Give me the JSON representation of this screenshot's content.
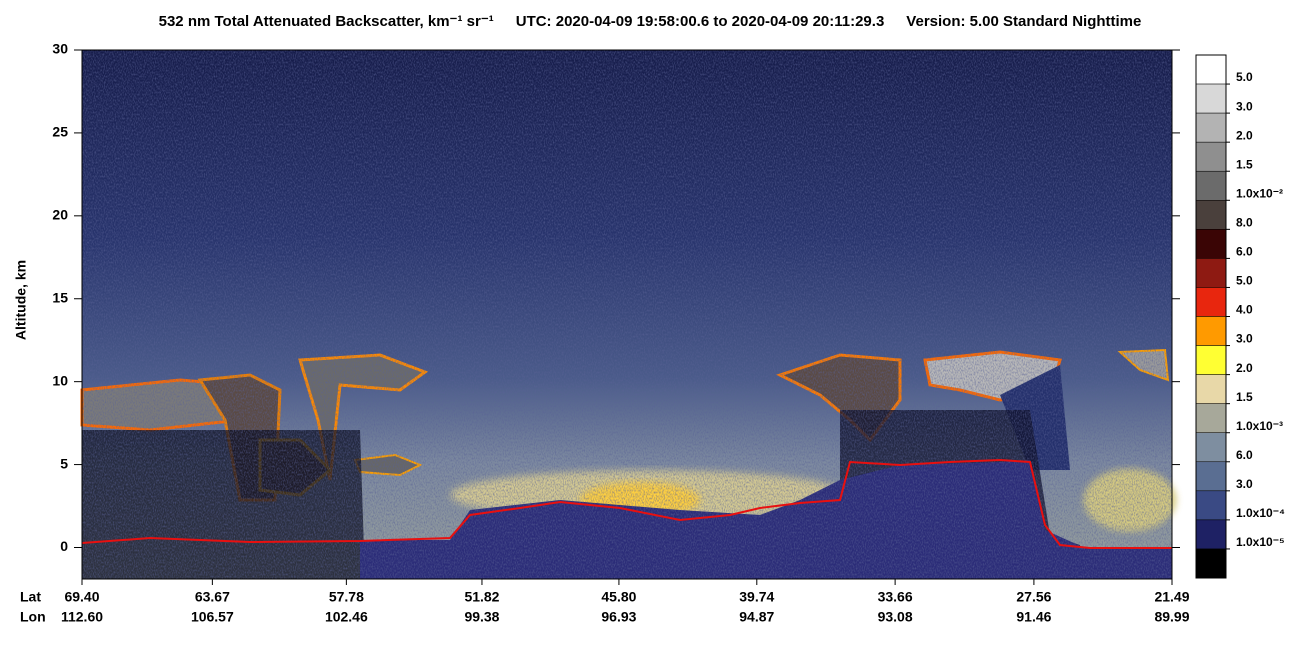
{
  "chart_data": {
    "type": "curtain",
    "title": "532 nm Total Attenuated Backscatter, km⁻¹ sr⁻¹",
    "time_range": "UTC:  2020-04-09 19:58:00.6  to  2020-04-09 20:11:29.3",
    "version": "Version: 5.00  Standard  Nighttime",
    "ylabel": "Altitude, km",
    "ylim": [
      -1.9,
      30
    ],
    "yticks": [
      0,
      5,
      10,
      15,
      20,
      25,
      30
    ],
    "xlim": [
      69.4,
      21.49
    ],
    "x_row_labels": [
      "Lat",
      "Lon"
    ],
    "xticks": [
      {
        "value": 69.4,
        "label": "69.40"
      },
      {
        "value": 63.67,
        "label": "63.67"
      },
      {
        "value": 57.78,
        "label": "57.78"
      },
      {
        "value": 51.82,
        "label": "51.82"
      },
      {
        "value": 45.8,
        "label": "45.80"
      },
      {
        "value": 39.74,
        "label": "39.74"
      },
      {
        "value": 33.66,
        "label": "33.66"
      },
      {
        "value": 27.56,
        "label": "27.56"
      },
      {
        "value": 21.49,
        "label": "21.49"
      }
    ],
    "x2ticks": [
      {
        "value": 112.6,
        "label": "112.60"
      },
      {
        "value": 106.57,
        "label": "106.57"
      },
      {
        "value": 102.46,
        "label": "102.46"
      },
      {
        "value": 99.38,
        "label": "99.38"
      },
      {
        "value": 96.93,
        "label": "96.93"
      },
      {
        "value": 94.87,
        "label": "94.87"
      },
      {
        "value": 93.08,
        "label": "93.08"
      },
      {
        "value": 91.46,
        "label": "91.46"
      },
      {
        "value": 89.99,
        "label": "89.99"
      }
    ],
    "colorbar": {
      "values": [
        0.05,
        0.03,
        0.02,
        0.015,
        0.01,
        0.008,
        0.006,
        0.005,
        0.004,
        0.003,
        0.002,
        0.0015,
        0.001,
        0.0006,
        0.0003,
        0.0001,
        1e-05
      ],
      "value_labels": [
        "5.0",
        "3.0",
        "2.0",
        "1.5",
        "1.0x10⁻²",
        "8.0",
        "6.0",
        "5.0",
        "4.0",
        "3.0",
        "2.0",
        "1.5",
        "1.0x10⁻³",
        "6.0",
        "3.0",
        "1.0x10⁻⁴",
        "1.0x10⁻⁵"
      ],
      "colors": [
        "#ffffff",
        "#d8d8d8",
        "#b3b3b3",
        "#8f8f8f",
        "#6b6b6b",
        "#4a403c",
        "#3a0505",
        "#8e1a12",
        "#e8260e",
        "#ff9a00",
        "#ffff33",
        "#e8d8a8",
        "#a7a89a",
        "#7e8ea0",
        "#5a6e92",
        "#3a4a84",
        "#1e2164",
        "#000000"
      ]
    }
  }
}
